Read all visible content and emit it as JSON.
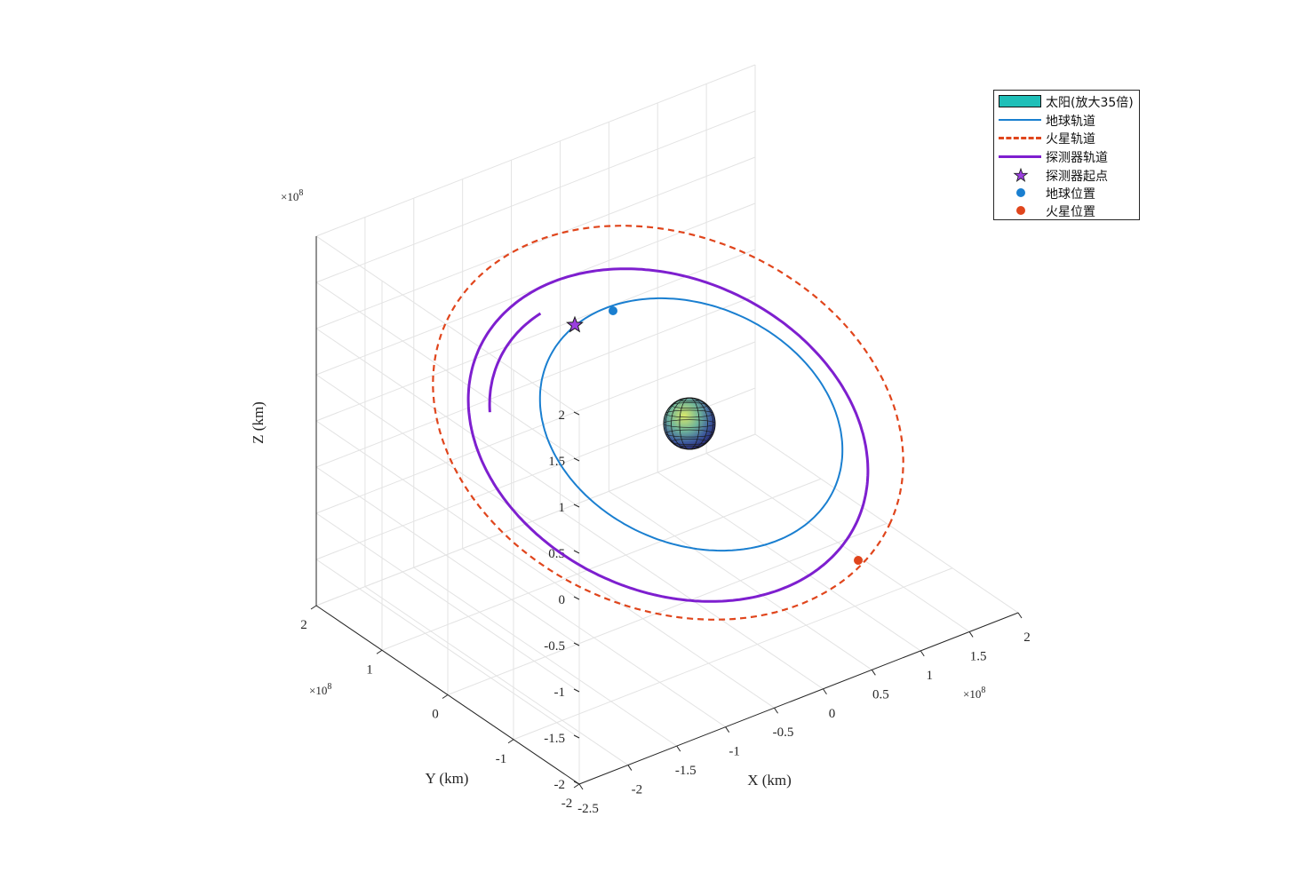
{
  "chart_data": {
    "type": "line3d",
    "xlabel": "X (km)",
    "ylabel": "Y (km)",
    "zlabel": "Z (km)",
    "x_exponent": "×10",
    "x_exponent_power": "8",
    "y_exponent": "×10",
    "y_exponent_power": "8",
    "z_exponent": "×10",
    "z_exponent_power": "8",
    "xlim": [
      -2.5,
      2.0
    ],
    "ylim": [
      -2,
      2
    ],
    "zlim": [
      -2,
      2
    ],
    "x_ticks": [
      "-2.5",
      "-2",
      "-1.5",
      "-1",
      "-0.5",
      "0",
      "0.5",
      "1",
      "1.5",
      "2"
    ],
    "y_ticks": [
      "-2",
      "-1",
      "0",
      "1",
      "2"
    ],
    "z_ticks": [
      "-2",
      "-1.5",
      "-1",
      "-0.5",
      "0",
      "0.5",
      "1",
      "1.5",
      "2"
    ],
    "grid": true,
    "legend_position": "top-right",
    "legend": [
      {
        "label": "太阳(放大35倍)",
        "kind": "patch",
        "color": "#1fbfb8"
      },
      {
        "label": "地球轨道",
        "kind": "solid-line",
        "color": "#1a7fd0"
      },
      {
        "label": "火星轨道",
        "kind": "dashed-line",
        "color": "#e0451c"
      },
      {
        "label": "探测器轨道",
        "kind": "solid-line",
        "color": "#7e1fcf"
      },
      {
        "label": "探测器起点",
        "kind": "star",
        "color": "#7e1fcf"
      },
      {
        "label": "地球位置",
        "kind": "dot",
        "color": "#1a7fd0"
      },
      {
        "label": "火星位置",
        "kind": "dot",
        "color": "#e0451c"
      }
    ],
    "series": [
      {
        "name": "地球轨道",
        "color": "#1a7fd0",
        "style": "solid",
        "semi_major_axis": 1.496,
        "eccentricity": 0.017
      },
      {
        "name": "火星轨道",
        "color": "#e0451c",
        "style": "dashed",
        "semi_major_axis": 2.279,
        "eccentricity": 0.093
      },
      {
        "name": "探测器轨道",
        "color": "#7e1fcf",
        "style": "solid",
        "semi_major_axis": 1.8875,
        "eccentricity": 0.208
      }
    ],
    "markers": {
      "probe_start": {
        "color": "#7e1fcf"
      },
      "earth_position": {
        "color": "#1a7fd0"
      },
      "mars_position": {
        "color": "#e0451c"
      }
    }
  }
}
